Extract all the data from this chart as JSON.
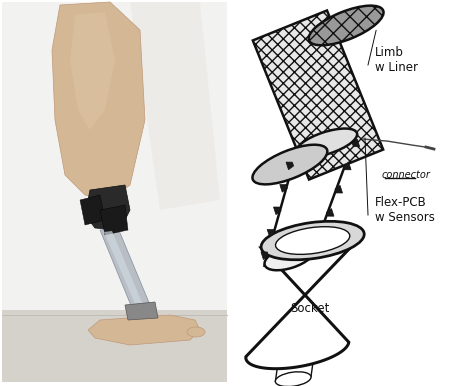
{
  "background_color": "#ffffff",
  "figsize": [
    4.74,
    3.86
  ],
  "dpi": 100,
  "labels": {
    "limb_liner": "Limb\nw Liner",
    "connector": "connector",
    "flex_pcb": "Flex-PCB\nw Sensors",
    "socket": "Socket"
  },
  "colors": {
    "outline": "#111111",
    "sensor": "#1a1a1a",
    "text": "#111111",
    "white": "#ffffff",
    "light_gray": "#e8e8e8",
    "med_gray": "#c0c0c0",
    "photo_bg": "#e0ddd8",
    "photo_wall": "#f2f2f0",
    "photo_floor": "#d5d2cc",
    "skin": "#d4b896",
    "skin_dark": "#c09878",
    "dark": "#2a2a2a",
    "silver": "#b8bec4",
    "silver_dark": "#8090a0"
  },
  "font_sizes": {
    "label": 8.5,
    "connector": 7
  }
}
